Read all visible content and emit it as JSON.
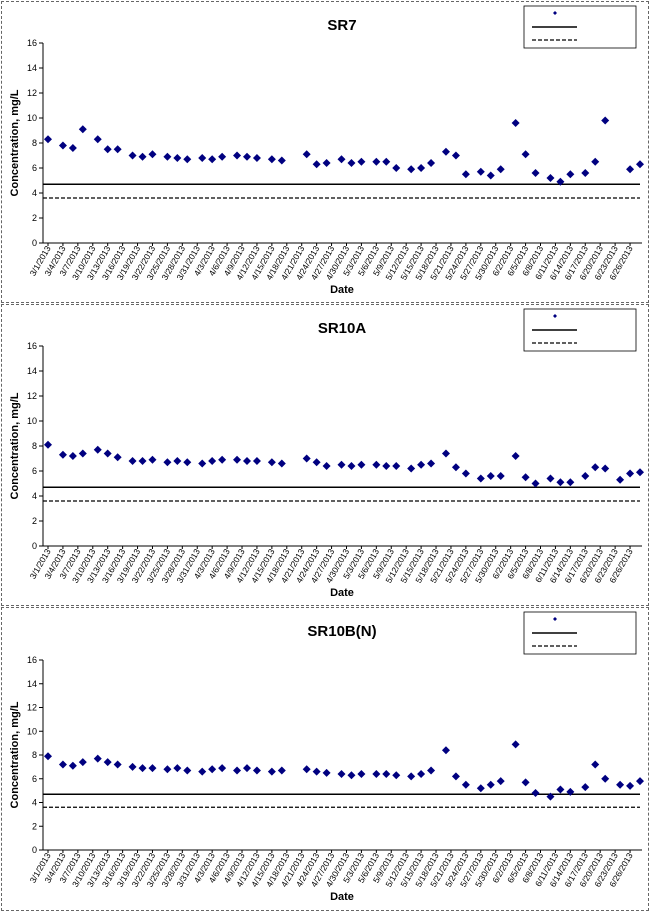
{
  "chart_data": [
    {
      "type": "scatter",
      "title": "SR7",
      "xlabel": "Date",
      "ylabel": "Concentration, mg/L",
      "xlim": [
        "3/1/2013",
        "6/28/2013"
      ],
      "xticks": [
        "3/1/2013",
        "3/4/2013",
        "3/7/2013",
        "3/10/2013",
        "3/13/2013",
        "3/16/2013",
        "3/19/2013",
        "3/22/2013",
        "3/25/2013",
        "3/28/2013",
        "3/31/2013",
        "4/3/2013",
        "4/6/2013",
        "4/9/2013",
        "4/12/2013",
        "4/15/2013",
        "4/18/2013",
        "4/21/2013",
        "4/24/2013",
        "4/27/2013",
        "4/30/2013",
        "5/3/2013",
        "5/6/2013",
        "5/9/2013",
        "5/12/2013",
        "5/15/2013",
        "5/18/2013",
        "5/21/2013",
        "5/24/2013",
        "5/27/2013",
        "5/30/2013",
        "6/2/2013",
        "6/5/2013",
        "6/8/2013",
        "6/11/2013",
        "6/14/2013",
        "6/17/2013",
        "6/20/2013",
        "6/23/2013",
        "6/26/2013"
      ],
      "ylim": [
        0,
        16
      ],
      "yticks": [
        0,
        2,
        4,
        6,
        8,
        10,
        12,
        14,
        16
      ],
      "series": [
        {
          "color": "#000080",
          "x": [
            "3/1/2013",
            "3/4/2013",
            "3/6/2013",
            "3/8/2013",
            "3/11/2013",
            "3/13/2013",
            "3/15/2013",
            "3/18/2013",
            "3/20/2013",
            "3/22/2013",
            "3/25/2013",
            "3/27/2013",
            "3/29/2013",
            "4/1/2013",
            "4/3/2013",
            "4/5/2013",
            "4/8/2013",
            "4/10/2013",
            "4/12/2013",
            "4/15/2013",
            "4/17/2013",
            "4/22/2013",
            "4/24/2013",
            "4/26/2013",
            "4/29/2013",
            "5/1/2013",
            "5/3/2013",
            "5/6/2013",
            "5/8/2013",
            "5/10/2013",
            "5/13/2013",
            "5/15/2013",
            "5/17/2013",
            "5/20/2013",
            "5/22/2013",
            "5/24/2013",
            "5/27/2013",
            "5/29/2013",
            "5/31/2013",
            "6/3/2013",
            "6/5/2013",
            "6/7/2013",
            "6/10/2013",
            "6/12/2013",
            "6/14/2013",
            "6/17/2013",
            "6/19/2013",
            "6/21/2013",
            "6/26/2013",
            "6/28/2013"
          ],
          "values": [
            8.3,
            7.8,
            7.6,
            9.1,
            8.3,
            7.5,
            7.5,
            7.0,
            6.9,
            7.1,
            6.9,
            6.8,
            6.7,
            6.8,
            6.7,
            6.9,
            7.0,
            6.9,
            6.8,
            6.7,
            6.6,
            7.1,
            6.3,
            6.4,
            6.7,
            6.4,
            6.5,
            6.5,
            6.5,
            6.0,
            5.9,
            6.0,
            6.4,
            7.3,
            7.0,
            5.5,
            5.7,
            5.4,
            5.9,
            9.6,
            7.1,
            5.6,
            5.2,
            4.9,
            5.5,
            5.6,
            6.5,
            9.8,
            5.9,
            6.3
          ]
        }
      ],
      "ref_lines": [
        {
          "value": 4.7,
          "style": "solid"
        },
        {
          "value": 3.6,
          "style": "dashed"
        }
      ]
    },
    {
      "type": "scatter",
      "title": "SR10A",
      "xlabel": "Date",
      "ylabel": "Concentration, mg/L",
      "xlim": [
        "3/1/2013",
        "6/28/2013"
      ],
      "xticks": [
        "3/1/2013",
        "3/4/2013",
        "3/7/2013",
        "3/10/2013",
        "3/13/2013",
        "3/16/2013",
        "3/19/2013",
        "3/22/2013",
        "3/25/2013",
        "3/28/2013",
        "3/31/2013",
        "4/3/2013",
        "4/6/2013",
        "4/9/2013",
        "4/12/2013",
        "4/15/2013",
        "4/18/2013",
        "4/21/2013",
        "4/24/2013",
        "4/27/2013",
        "4/30/2013",
        "5/3/2013",
        "5/6/2013",
        "5/9/2013",
        "5/12/2013",
        "5/15/2013",
        "5/18/2013",
        "5/21/2013",
        "5/24/2013",
        "5/27/2013",
        "5/30/2013",
        "6/2/2013",
        "6/5/2013",
        "6/8/2013",
        "6/11/2013",
        "6/14/2013",
        "6/17/2013",
        "6/20/2013",
        "6/23/2013",
        "6/26/2013"
      ],
      "ylim": [
        0,
        16
      ],
      "yticks": [
        0,
        2,
        4,
        6,
        8,
        10,
        12,
        14,
        16
      ],
      "series": [
        {
          "color": "#000080",
          "x": [
            "3/1/2013",
            "3/4/2013",
            "3/6/2013",
            "3/8/2013",
            "3/11/2013",
            "3/13/2013",
            "3/15/2013",
            "3/18/2013",
            "3/20/2013",
            "3/22/2013",
            "3/25/2013",
            "3/27/2013",
            "3/29/2013",
            "4/1/2013",
            "4/3/2013",
            "4/5/2013",
            "4/8/2013",
            "4/10/2013",
            "4/12/2013",
            "4/15/2013",
            "4/17/2013",
            "4/22/2013",
            "4/24/2013",
            "4/26/2013",
            "4/29/2013",
            "5/1/2013",
            "5/3/2013",
            "5/6/2013",
            "5/8/2013",
            "5/10/2013",
            "5/13/2013",
            "5/15/2013",
            "5/17/2013",
            "5/20/2013",
            "5/22/2013",
            "5/24/2013",
            "5/27/2013",
            "5/29/2013",
            "5/31/2013",
            "6/3/2013",
            "6/5/2013",
            "6/7/2013",
            "6/10/2013",
            "6/12/2013",
            "6/14/2013",
            "6/17/2013",
            "6/19/2013",
            "6/21/2013",
            "6/24/2013",
            "6/26/2013",
            "6/28/2013"
          ],
          "values": [
            8.1,
            7.3,
            7.2,
            7.4,
            7.7,
            7.4,
            7.1,
            6.8,
            6.8,
            6.9,
            6.7,
            6.8,
            6.7,
            6.6,
            6.8,
            6.9,
            6.9,
            6.8,
            6.8,
            6.7,
            6.6,
            7.0,
            6.7,
            6.4,
            6.5,
            6.4,
            6.5,
            6.5,
            6.4,
            6.4,
            6.2,
            6.5,
            6.6,
            7.4,
            6.3,
            5.8,
            5.4,
            5.6,
            5.6,
            7.2,
            5.5,
            5.0,
            5.4,
            5.1,
            5.1,
            5.6,
            6.3,
            6.2,
            5.3,
            5.8,
            5.9
          ]
        }
      ],
      "ref_lines": [
        {
          "value": 4.7,
          "style": "solid"
        },
        {
          "value": 3.6,
          "style": "dashed"
        }
      ]
    },
    {
      "type": "scatter",
      "title": "SR10B(N)",
      "xlabel": "Date",
      "ylabel": "Concentration, mg/L",
      "xlim": [
        "3/1/2013",
        "6/28/2013"
      ],
      "xticks": [
        "3/1/2013",
        "3/4/2013",
        "3/7/2013",
        "3/10/2013",
        "3/13/2013",
        "3/16/2013",
        "3/19/2013",
        "3/22/2013",
        "3/25/2013",
        "3/28/2013",
        "3/31/2013",
        "4/3/2013",
        "4/6/2013",
        "4/9/2013",
        "4/12/2013",
        "4/15/2013",
        "4/18/2013",
        "4/21/2013",
        "4/24/2013",
        "4/27/2013",
        "4/30/2013",
        "5/3/2013",
        "5/6/2013",
        "5/9/2013",
        "5/12/2013",
        "5/15/2013",
        "5/18/2013",
        "5/21/2013",
        "5/24/2013",
        "5/27/2013",
        "5/30/2013",
        "6/2/2013",
        "6/5/2013",
        "6/8/2013",
        "6/11/2013",
        "6/14/2013",
        "6/17/2013",
        "6/20/2013",
        "6/23/2013",
        "6/26/2013"
      ],
      "ylim": [
        0,
        16
      ],
      "yticks": [
        0,
        2,
        4,
        6,
        8,
        10,
        12,
        14,
        16
      ],
      "series": [
        {
          "color": "#000080",
          "x": [
            "3/1/2013",
            "3/4/2013",
            "3/6/2013",
            "3/8/2013",
            "3/11/2013",
            "3/13/2013",
            "3/15/2013",
            "3/18/2013",
            "3/20/2013",
            "3/22/2013",
            "3/25/2013",
            "3/27/2013",
            "3/29/2013",
            "4/1/2013",
            "4/3/2013",
            "4/5/2013",
            "4/8/2013",
            "4/10/2013",
            "4/12/2013",
            "4/15/2013",
            "4/17/2013",
            "4/22/2013",
            "4/24/2013",
            "4/26/2013",
            "4/29/2013",
            "5/1/2013",
            "5/3/2013",
            "5/6/2013",
            "5/8/2013",
            "5/10/2013",
            "5/13/2013",
            "5/15/2013",
            "5/17/2013",
            "5/20/2013",
            "5/22/2013",
            "5/24/2013",
            "5/27/2013",
            "5/29/2013",
            "5/31/2013",
            "6/3/2013",
            "6/5/2013",
            "6/7/2013",
            "6/10/2013",
            "6/12/2013",
            "6/14/2013",
            "6/17/2013",
            "6/19/2013",
            "6/21/2013",
            "6/24/2013",
            "6/26/2013",
            "6/28/2013"
          ],
          "values": [
            7.9,
            7.2,
            7.1,
            7.4,
            7.7,
            7.4,
            7.2,
            7.0,
            6.9,
            6.9,
            6.8,
            6.9,
            6.7,
            6.6,
            6.8,
            6.9,
            6.7,
            6.9,
            6.7,
            6.6,
            6.7,
            6.8,
            6.6,
            6.5,
            6.4,
            6.3,
            6.4,
            6.4,
            6.4,
            6.3,
            6.2,
            6.4,
            6.7,
            8.4,
            6.2,
            5.5,
            5.2,
            5.5,
            5.8,
            8.9,
            5.7,
            4.8,
            4.5,
            5.1,
            4.9,
            5.3,
            7.2,
            6.0,
            5.5,
            5.4,
            5.8
          ]
        }
      ],
      "ref_lines": [
        {
          "value": 4.7,
          "style": "solid"
        },
        {
          "value": 3.6,
          "style": "dashed"
        }
      ]
    }
  ]
}
